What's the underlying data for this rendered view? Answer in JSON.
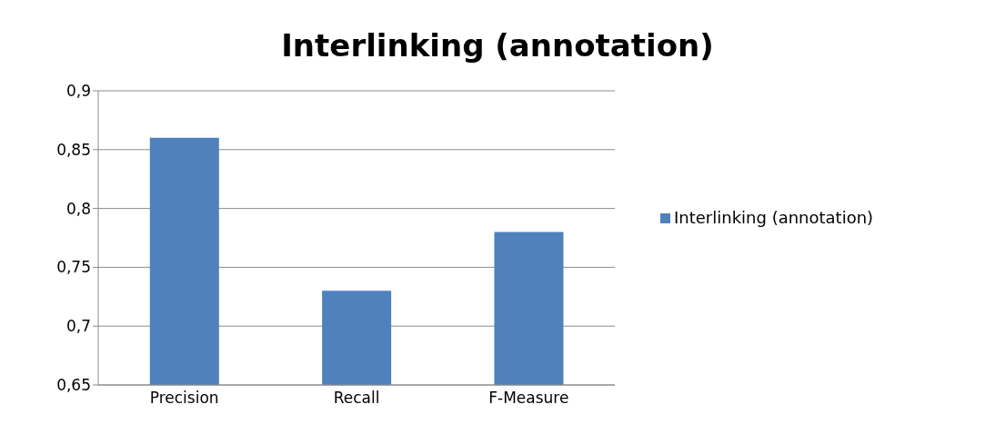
{
  "chart_data": {
    "type": "bar",
    "title": "Interlinking (annotation)",
    "categories": [
      "Precision",
      "Recall",
      "F-Measure"
    ],
    "series": [
      {
        "name": "Interlinking (annotation)",
        "color": "#4f81bd",
        "values": [
          0.86,
          0.73,
          0.78
        ]
      }
    ],
    "ylim": [
      0.65,
      0.9
    ],
    "yticks": [
      {
        "value": 0.65,
        "label": "0,65"
      },
      {
        "value": 0.7,
        "label": "0,7"
      },
      {
        "value": 0.75,
        "label": "0,75"
      },
      {
        "value": 0.8,
        "label": "0,8"
      },
      {
        "value": 0.85,
        "label": "0,85"
      },
      {
        "value": 0.9,
        "label": "0,9"
      }
    ],
    "grid": "y",
    "legend": "right"
  }
}
